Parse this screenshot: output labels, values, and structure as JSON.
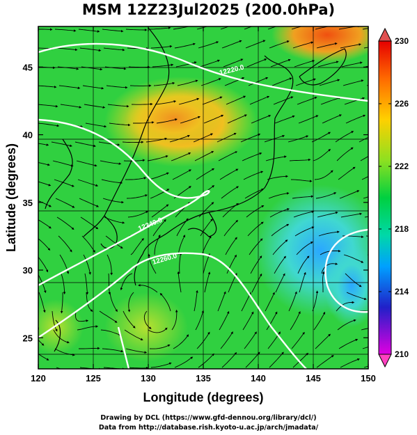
{
  "title": "MSM 12Z23Jul2025 (200.0hPa)",
  "map": {
    "lon_range": [
      120,
      150
    ],
    "lat_range": [
      22.7,
      48
    ],
    "xlabel": "Longitude (degrees)",
    "ylabel": "Latitude  (degrees)",
    "x_ticks": [
      "120",
      "125",
      "130",
      "135",
      "140",
      "145",
      "150"
    ],
    "x_tick_values": [
      120,
      125,
      130,
      135,
      140,
      145,
      150
    ],
    "y_ticks": [
      "25",
      "30",
      "35",
      "40",
      "45"
    ],
    "y_tick_values": [
      25,
      30,
      35,
      40,
      45
    ],
    "grid": true,
    "contour_labels": [
      "12220.0",
      "12240.0",
      "12260.0"
    ],
    "colors": {
      "land_outline": "#000000",
      "contour": "#ffffff",
      "streamline": "#000000"
    }
  },
  "colorbar": {
    "labels": [
      "230",
      "226",
      "222",
      "218",
      "214",
      "210"
    ],
    "values": [
      230,
      226,
      222,
      218,
      214,
      210
    ],
    "min": 210,
    "max": 230
  },
  "credits": {
    "line1": "Drawing by DCL (https://www.gfd-dennou.org/library/dcl/)",
    "line2": "Data from http://database.rish.kyoto-u.ac.jp/arch/jmadata/"
  }
}
